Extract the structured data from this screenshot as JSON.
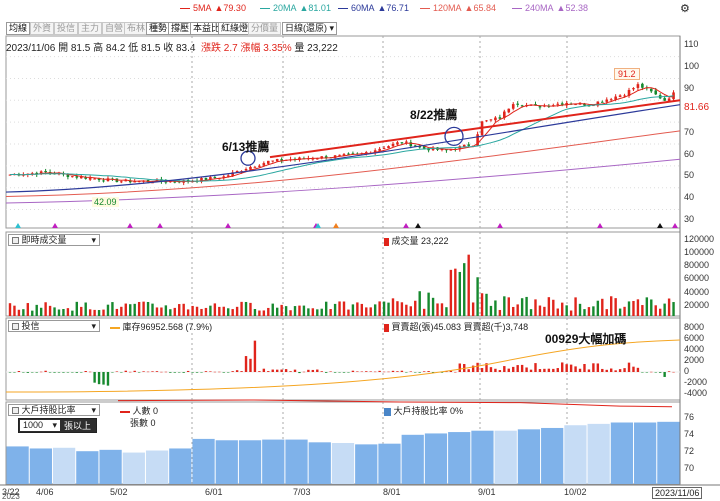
{
  "toolbar": {
    "ma_legend": [
      {
        "label": "5MA",
        "value": "▲79.30",
        "color": "#e0241b"
      },
      {
        "label": "20MA",
        "value": "▲81.01",
        "color": "#2aa7a0"
      },
      {
        "label": "60MA",
        "value": "▲76.71",
        "color": "#2c3a9a"
      },
      {
        "label": "120MA",
        "value": "▲65.84",
        "color": "#e35b50"
      },
      {
        "label": "240MA",
        "value": "▲52.38",
        "color": "#a866c4"
      }
    ],
    "buttons": [
      "均線",
      "外資",
      "投信",
      "主力",
      "自營",
      "布林",
      "種勢",
      "撐壓",
      "本益比",
      "紅綠燈",
      "分價量"
    ],
    "active_buttons": [
      0,
      6,
      7,
      8,
      9
    ],
    "period_select": "日線(還原)"
  },
  "quote": {
    "date": "2023/11/06",
    "open_label": "開",
    "open": "81.5",
    "high_label": "高",
    "high": "84.2",
    "low_label": "低",
    "low": "81.5",
    "close_label": "收",
    "close": "83.4",
    "change_label": "漲跌",
    "change": "2.7",
    "pct_label": "漲幅",
    "pct": "3.35%",
    "volume_label": "量",
    "volume": "23,222"
  },
  "price_pane": {
    "y_ticks": [
      "110",
      "100",
      "90",
      "80",
      "70",
      "60",
      "50",
      "40",
      "30"
    ],
    "current_price": "81.66",
    "high_marker": "91.2",
    "low_marker": "42.09",
    "annotations": [
      "6/13推薦",
      "8/22推薦"
    ]
  },
  "volume_pane": {
    "select": "即時成交量",
    "legend": "成交量 23,222",
    "y_ticks": [
      "120000",
      "100000",
      "80000",
      "60000",
      "40000",
      "20000"
    ]
  },
  "invest_pane": {
    "select": "投信",
    "legend_inv": "庫存96952.568 (7.9%)",
    "legend_buy": "買賣超(張)45.083",
    "legend_amt": "買賣超(千)3,748",
    "annotation": "00929大幅加碼",
    "y_ticks": [
      "8000",
      "6000",
      "4000",
      "2000",
      "0",
      "-2000",
      "-4000"
    ]
  },
  "holder_pane": {
    "select": "大戶持股比率",
    "threshold_select": "1000",
    "threshold_suffix": "張以上",
    "legend_people": "人數 0",
    "legend_lots": "張數 0",
    "legend_ratio": "大戶持股比率 0%",
    "y_ticks": [
      "76",
      "74",
      "72",
      "70"
    ]
  },
  "x_axis": {
    "labels": [
      "3/22",
      "4/06",
      "5/02",
      "6/01",
      "7/03",
      "8/01",
      "9/01",
      "10/02"
    ],
    "sub_label": "2023",
    "current_date": "2023/11/06"
  },
  "colors": {
    "up": "#e0241b",
    "down": "#16892e",
    "inventory": "#f5a623",
    "bar_blue": "#7fb2ea",
    "bar_light": "#c6dcf5"
  }
}
